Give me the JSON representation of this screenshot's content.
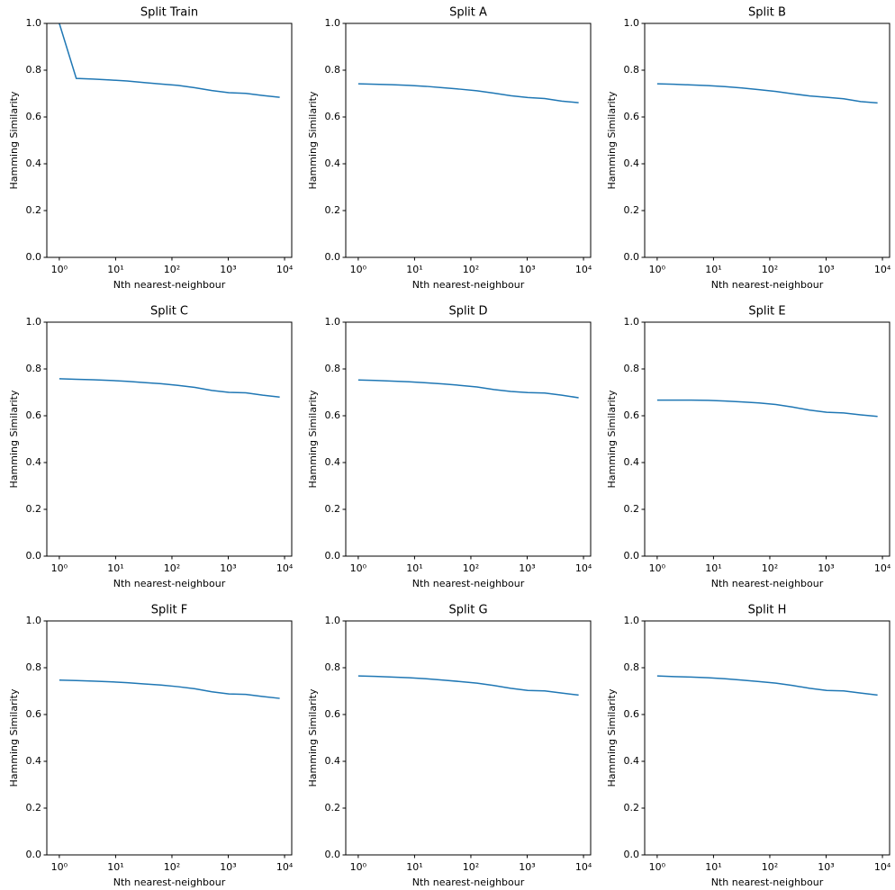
{
  "chart_data": [
    {
      "type": "line",
      "title": "Split Train",
      "xlabel": "Nth nearest-neighbour",
      "ylabel": "Hamming Similarity",
      "xscale": "log",
      "color": "#1f77b4",
      "x": [
        1,
        2,
        4,
        8,
        16,
        32,
        64,
        128,
        256,
        512,
        1024,
        2048,
        4096,
        8192
      ],
      "values": [
        1.0,
        0.765,
        0.762,
        0.758,
        0.754,
        0.747,
        0.741,
        0.735,
        0.725,
        0.713,
        0.704,
        0.701,
        0.692,
        0.684
      ],
      "xlim": [
        0.6,
        13400
      ],
      "ylim": [
        0,
        1
      ],
      "xticks": [
        {
          "value": 1,
          "label": "10⁰"
        },
        {
          "value": 10,
          "label": "10¹"
        },
        {
          "value": 100,
          "label": "10²"
        },
        {
          "value": 1000,
          "label": "10³"
        },
        {
          "value": 10000,
          "label": "10⁴"
        }
      ],
      "yticks": [
        {
          "value": 0,
          "label": "0.0"
        },
        0.2,
        0.4,
        0.6,
        0.8,
        {
          "value": 1,
          "label": "1.0"
        }
      ]
    },
    {
      "type": "line",
      "title": "Split A",
      "xlabel": "Nth nearest-neighbour",
      "ylabel": "Hamming Similarity",
      "xscale": "log",
      "color": "#1f77b4",
      "x": [
        1,
        2,
        4,
        8,
        16,
        32,
        64,
        128,
        256,
        512,
        1024,
        2048,
        4096,
        8192
      ],
      "values": [
        0.742,
        0.74,
        0.738,
        0.735,
        0.731,
        0.725,
        0.719,
        0.712,
        0.702,
        0.691,
        0.683,
        0.679,
        0.668,
        0.661
      ],
      "xlim": [
        0.6,
        13400
      ],
      "ylim": [
        0,
        1
      ],
      "xticks": [
        {
          "value": 1,
          "label": "10⁰"
        },
        {
          "value": 10,
          "label": "10¹"
        },
        {
          "value": 100,
          "label": "10²"
        },
        {
          "value": 1000,
          "label": "10³"
        },
        {
          "value": 10000,
          "label": "10⁴"
        }
      ],
      "yticks": [
        {
          "value": 0,
          "label": "0.0"
        },
        0.2,
        0.4,
        0.6,
        0.8,
        {
          "value": 1,
          "label": "1.0"
        }
      ]
    },
    {
      "type": "line",
      "title": "Split B",
      "xlabel": "Nth nearest-neighbour",
      "ylabel": "Hamming Similarity",
      "xscale": "log",
      "color": "#1f77b4",
      "x": [
        1,
        2,
        4,
        8,
        16,
        32,
        64,
        128,
        256,
        512,
        1024,
        2048,
        4096,
        8192
      ],
      "values": [
        0.742,
        0.74,
        0.737,
        0.734,
        0.73,
        0.724,
        0.717,
        0.709,
        0.699,
        0.69,
        0.684,
        0.678,
        0.666,
        0.66
      ],
      "xlim": [
        0.6,
        13400
      ],
      "ylim": [
        0,
        1
      ],
      "xticks": [
        {
          "value": 1,
          "label": "10⁰"
        },
        {
          "value": 10,
          "label": "10¹"
        },
        {
          "value": 100,
          "label": "10²"
        },
        {
          "value": 1000,
          "label": "10³"
        },
        {
          "value": 10000,
          "label": "10⁴"
        }
      ],
      "yticks": [
        {
          "value": 0,
          "label": "0.0"
        },
        0.2,
        0.4,
        0.6,
        0.8,
        {
          "value": 1,
          "label": "1.0"
        }
      ]
    },
    {
      "type": "line",
      "title": "Split C",
      "xlabel": "Nth nearest-neighbour",
      "ylabel": "Hamming Similarity",
      "xscale": "log",
      "color": "#1f77b4",
      "x": [
        1,
        2,
        4,
        8,
        16,
        32,
        64,
        128,
        256,
        512,
        1024,
        2048,
        4096,
        8192
      ],
      "values": [
        0.758,
        0.756,
        0.754,
        0.751,
        0.747,
        0.742,
        0.737,
        0.73,
        0.721,
        0.708,
        0.7,
        0.698,
        0.688,
        0.68
      ],
      "xlim": [
        0.6,
        13400
      ],
      "ylim": [
        0,
        1
      ],
      "xticks": [
        {
          "value": 1,
          "label": "10⁰"
        },
        {
          "value": 10,
          "label": "10¹"
        },
        {
          "value": 100,
          "label": "10²"
        },
        {
          "value": 1000,
          "label": "10³"
        },
        {
          "value": 10000,
          "label": "10⁴"
        }
      ],
      "yticks": [
        {
          "value": 0,
          "label": "0.0"
        },
        0.2,
        0.4,
        0.6,
        0.8,
        {
          "value": 1,
          "label": "1.0"
        }
      ]
    },
    {
      "type": "line",
      "title": "Split D",
      "xlabel": "Nth nearest-neighbour",
      "ylabel": "Hamming Similarity",
      "xscale": "log",
      "color": "#1f77b4",
      "x": [
        1,
        2,
        4,
        8,
        16,
        32,
        64,
        128,
        256,
        512,
        1024,
        2048,
        4096,
        8192
      ],
      "values": [
        0.753,
        0.751,
        0.748,
        0.745,
        0.741,
        0.736,
        0.73,
        0.723,
        0.712,
        0.704,
        0.699,
        0.697,
        0.688,
        0.677
      ],
      "xlim": [
        0.6,
        13400
      ],
      "ylim": [
        0,
        1
      ],
      "xticks": [
        {
          "value": 1,
          "label": "10⁰"
        },
        {
          "value": 10,
          "label": "10¹"
        },
        {
          "value": 100,
          "label": "10²"
        },
        {
          "value": 1000,
          "label": "10³"
        },
        {
          "value": 10000,
          "label": "10⁴"
        }
      ],
      "yticks": [
        {
          "value": 0,
          "label": "0.0"
        },
        0.2,
        0.4,
        0.6,
        0.8,
        {
          "value": 1,
          "label": "1.0"
        }
      ]
    },
    {
      "type": "line",
      "title": "Split E",
      "xlabel": "Nth nearest-neighbour",
      "ylabel": "Hamming Similarity",
      "xscale": "log",
      "color": "#1f77b4",
      "x": [
        1,
        2,
        4,
        8,
        16,
        32,
        64,
        128,
        256,
        512,
        1024,
        2048,
        4096,
        8192
      ],
      "values": [
        0.667,
        0.667,
        0.667,
        0.666,
        0.663,
        0.659,
        0.655,
        0.648,
        0.637,
        0.624,
        0.615,
        0.612,
        0.604,
        0.597
      ],
      "xlim": [
        0.6,
        13400
      ],
      "ylim": [
        0,
        1
      ],
      "xticks": [
        {
          "value": 1,
          "label": "10⁰"
        },
        {
          "value": 10,
          "label": "10¹"
        },
        {
          "value": 100,
          "label": "10²"
        },
        {
          "value": 1000,
          "label": "10³"
        },
        {
          "value": 10000,
          "label": "10⁴"
        }
      ],
      "yticks": [
        {
          "value": 0,
          "label": "0.0"
        },
        0.2,
        0.4,
        0.6,
        0.8,
        {
          "value": 1,
          "label": "1.0"
        }
      ]
    },
    {
      "type": "line",
      "title": "Split F",
      "xlabel": "Nth nearest-neighbour",
      "ylabel": "Hamming Similarity",
      "xscale": "log",
      "color": "#1f77b4",
      "x": [
        1,
        2,
        4,
        8,
        16,
        32,
        64,
        128,
        256,
        512,
        1024,
        2048,
        4096,
        8192
      ],
      "values": [
        0.747,
        0.745,
        0.743,
        0.74,
        0.736,
        0.731,
        0.726,
        0.719,
        0.71,
        0.697,
        0.688,
        0.686,
        0.677,
        0.669
      ],
      "xlim": [
        0.6,
        13400
      ],
      "ylim": [
        0,
        1
      ],
      "xticks": [
        {
          "value": 1,
          "label": "10⁰"
        },
        {
          "value": 10,
          "label": "10¹"
        },
        {
          "value": 100,
          "label": "10²"
        },
        {
          "value": 1000,
          "label": "10³"
        },
        {
          "value": 10000,
          "label": "10⁴"
        }
      ],
      "yticks": [
        {
          "value": 0,
          "label": "0.0"
        },
        0.2,
        0.4,
        0.6,
        0.8,
        {
          "value": 1,
          "label": "1.0"
        }
      ]
    },
    {
      "type": "line",
      "title": "Split G",
      "xlabel": "Nth nearest-neighbour",
      "ylabel": "Hamming Similarity",
      "xscale": "log",
      "color": "#1f77b4",
      "x": [
        1,
        2,
        4,
        8,
        16,
        32,
        64,
        128,
        256,
        512,
        1024,
        2048,
        4096,
        8192
      ],
      "values": [
        0.765,
        0.763,
        0.76,
        0.757,
        0.753,
        0.747,
        0.741,
        0.734,
        0.724,
        0.712,
        0.703,
        0.701,
        0.692,
        0.683
      ],
      "xlim": [
        0.6,
        13400
      ],
      "ylim": [
        0,
        1
      ],
      "xticks": [
        {
          "value": 1,
          "label": "10⁰"
        },
        {
          "value": 10,
          "label": "10¹"
        },
        {
          "value": 100,
          "label": "10²"
        },
        {
          "value": 1000,
          "label": "10³"
        },
        {
          "value": 10000,
          "label": "10⁴"
        }
      ],
      "yticks": [
        {
          "value": 0,
          "label": "0.0"
        },
        0.2,
        0.4,
        0.6,
        0.8,
        {
          "value": 1,
          "label": "1.0"
        }
      ]
    },
    {
      "type": "line",
      "title": "Split H",
      "xlabel": "Nth nearest-neighbour",
      "ylabel": "Hamming Similarity",
      "xscale": "log",
      "color": "#1f77b4",
      "x": [
        1,
        2,
        4,
        8,
        16,
        32,
        64,
        128,
        256,
        512,
        1024,
        2048,
        4096,
        8192
      ],
      "values": [
        0.765,
        0.762,
        0.76,
        0.757,
        0.753,
        0.747,
        0.741,
        0.734,
        0.724,
        0.712,
        0.703,
        0.701,
        0.692,
        0.683
      ],
      "xlim": [
        0.6,
        13400
      ],
      "ylim": [
        0,
        1
      ],
      "xticks": [
        {
          "value": 1,
          "label": "10⁰"
        },
        {
          "value": 10,
          "label": "10¹"
        },
        {
          "value": 100,
          "label": "10²"
        },
        {
          "value": 1000,
          "label": "10³"
        },
        {
          "value": 10000,
          "label": "10⁴"
        }
      ],
      "yticks": [
        {
          "value": 0,
          "label": "0.0"
        },
        0.2,
        0.4,
        0.6,
        0.8,
        {
          "value": 1,
          "label": "1.0"
        }
      ]
    }
  ]
}
